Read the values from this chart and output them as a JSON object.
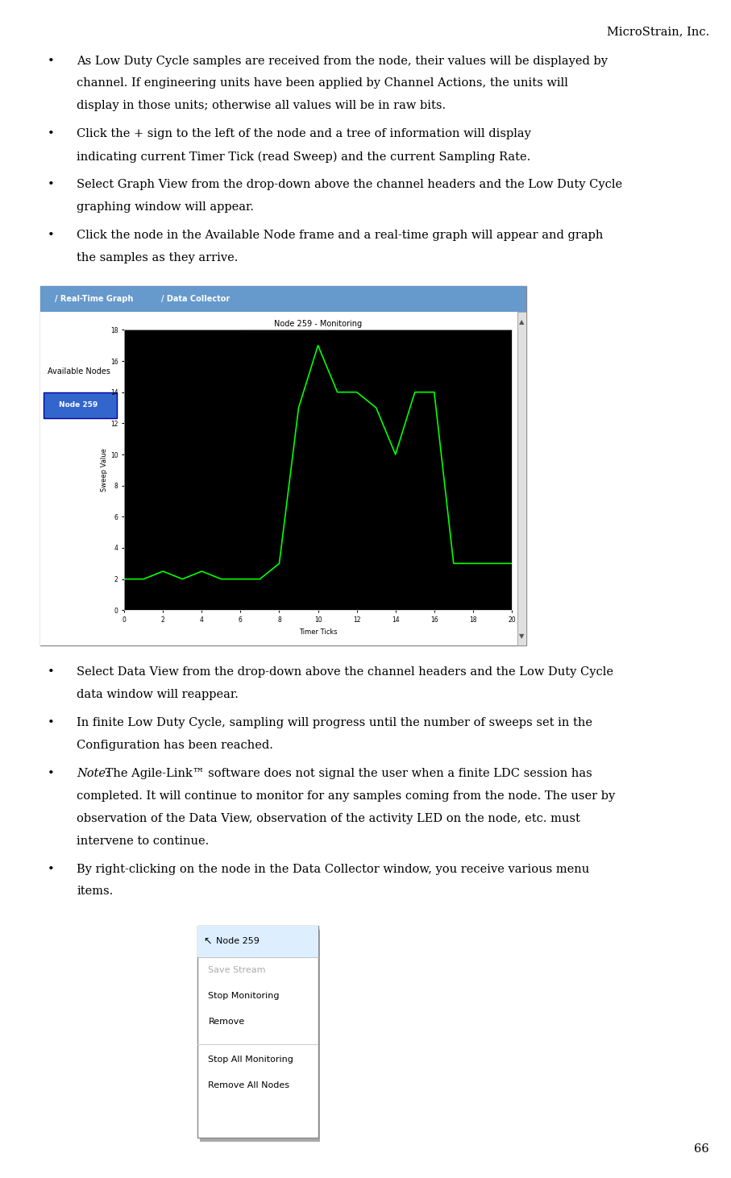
{
  "header": "MicroStrain, Inc.",
  "bullets": [
    {
      "text": "As Low Duty Cycle samples are received from the node, their values will be displayed by channel. If engineering units have been applied by Channel Actions, the units will display in those units; otherwise all values will be in raw bits."
    },
    {
      "text": "Click the + sign to the left of the node and a tree of information will display indicating current Timer Tick (read Sweep) and the current Sampling Rate."
    },
    {
      "text": "Select Graph View from the drop-down above the channel headers and the Low Duty Cycle graphing window will appear."
    },
    {
      "text": "Click the node in the Available Node frame and a real-time graph will appear and graph the samples as they arrive."
    }
  ],
  "bullets2": [
    {
      "text": "Select Data View from the drop-down above the channel headers and the Low Duty Cycle data window will reappear."
    },
    {
      "text": "In finite Low Duty Cycle, sampling will progress until the number of sweeps set in the Configuration has been reached."
    },
    {
      "text": "Note: The Agile-Link™ software does not signal the user when a finite LDC session has completed.  It will continue to monitor for any samples coming from the node. The user by observation of the Data View, observation of the activity LED on the node, etc. must intervene to continue.",
      "italic_prefix": "Note:"
    },
    {
      "text": "By right-clicking on the node in the Data Collector window, you receive various menu items."
    }
  ],
  "page_number": "66",
  "graph": {
    "title": "Node 259 - Monitoring",
    "xlabel": "Timer Ticks",
    "ylabel": "Sweep Value",
    "bg_color": "#000000",
    "line_color": "#00ff00",
    "x_data": [
      0,
      1,
      2,
      3,
      4,
      5,
      6,
      7,
      8,
      8.5,
      9,
      10,
      11,
      12,
      13,
      14,
      15,
      16,
      17,
      18,
      19,
      20
    ],
    "y_data": [
      2,
      2,
      2.5,
      2,
      2.5,
      2,
      2,
      2,
      3,
      8,
      13,
      17,
      14,
      14,
      13,
      10,
      14,
      14,
      3,
      3,
      3,
      3
    ],
    "xlim": [
      0,
      20
    ],
    "ylim": [
      0,
      18
    ],
    "xticks": [
      0,
      2,
      4,
      6,
      8,
      10,
      12,
      14,
      16,
      18,
      20
    ],
    "yticks": [
      0,
      2,
      4,
      6,
      8,
      10,
      12,
      14,
      16,
      18
    ]
  },
  "context_menu": {
    "title": "Node 259",
    "items": [
      "Save Stream",
      "Stop Monitoring",
      "Remove",
      "",
      "Stop All Monitoring",
      "Remove All Nodes"
    ],
    "grayed": [
      "Save Stream"
    ]
  }
}
